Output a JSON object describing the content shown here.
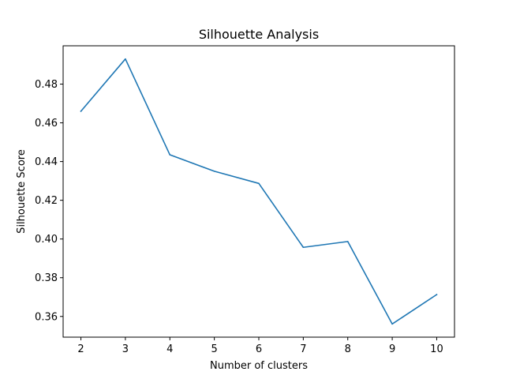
{
  "chart_data": {
    "type": "line",
    "title": "Silhouette Analysis",
    "xlabel": "Number of clusters",
    "ylabel": "Silhouette Score",
    "x": [
      2,
      3,
      4,
      5,
      6,
      7,
      8,
      9,
      10
    ],
    "series": [
      {
        "values": [
          0.466,
          0.493,
          0.4435,
          0.435,
          0.4287,
          0.3957,
          0.3987,
          0.3561,
          0.3713
        ],
        "color": "#1f77b4"
      }
    ],
    "xlim": [
      1.6,
      10.4
    ],
    "ylim": [
      0.3493,
      0.4998
    ],
    "xticks": [
      2,
      3,
      4,
      5,
      6,
      7,
      8,
      9,
      10
    ],
    "yticks": [
      0.36,
      0.38,
      0.4,
      0.42,
      0.44,
      0.46,
      0.48
    ],
    "ytick_labels": [
      "0.36",
      "0.38",
      "0.40",
      "0.42",
      "0.44",
      "0.46",
      "0.48"
    ],
    "grid": false,
    "legend": false
  }
}
